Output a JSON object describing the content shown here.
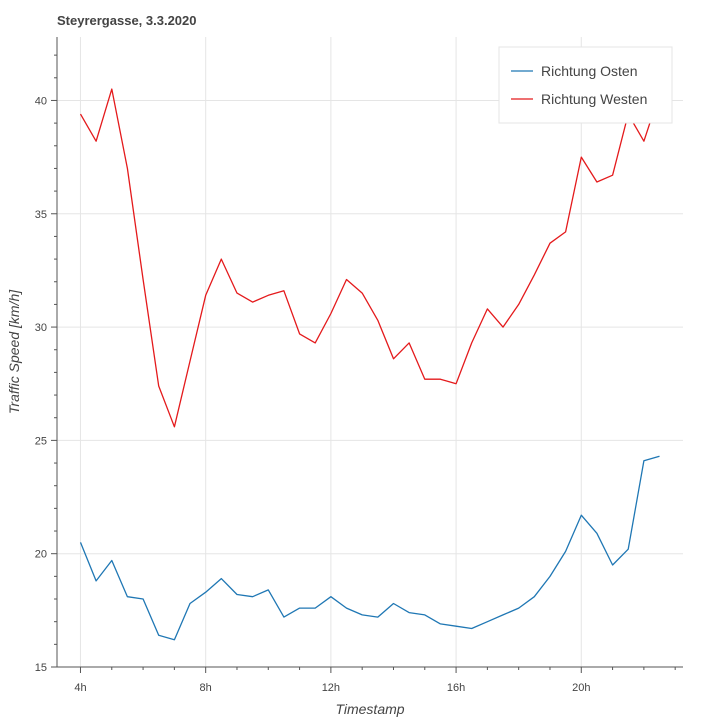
{
  "chart_data": {
    "type": "line",
    "title": "Steyrergasse, 3.3.2020",
    "xlabel": "Timestamp",
    "ylabel": "Traffic Speed [km/h]",
    "x_unit": "hour of day",
    "xlim": [
      3.25,
      23.25
    ],
    "ylim": [
      15,
      42.8
    ],
    "x_ticks": [
      4,
      8,
      12,
      16,
      20
    ],
    "x_tick_labels": [
      "4h",
      "8h",
      "12h",
      "16h",
      "20h"
    ],
    "y_ticks": [
      15,
      20,
      25,
      30,
      35,
      40
    ],
    "y_tick_labels": [
      "15",
      "20",
      "25",
      "30",
      "35",
      "40"
    ],
    "grid": true,
    "legend_position": "top-right",
    "x": [
      4,
      4.5,
      5,
      5.5,
      6,
      6.5,
      7,
      7.5,
      8,
      8.5,
      9,
      9.5,
      10,
      10.5,
      11,
      11.5,
      12,
      12.5,
      13,
      13.5,
      14,
      14.5,
      15,
      15.5,
      16,
      16.5,
      17,
      17.5,
      18,
      18.5,
      19,
      19.5,
      20,
      20.5,
      21,
      21.5,
      22,
      22.5
    ],
    "series": [
      {
        "name": "Richtung Osten",
        "color": "#1f77b4",
        "values": [
          20.5,
          18.8,
          19.7,
          18.1,
          18.0,
          16.4,
          16.2,
          17.8,
          18.3,
          18.9,
          18.2,
          18.1,
          18.4,
          17.2,
          17.6,
          17.6,
          18.1,
          17.6,
          17.3,
          17.2,
          17.8,
          17.4,
          17.3,
          16.9,
          16.8,
          16.7,
          17.0,
          17.3,
          17.6,
          18.1,
          19.0,
          20.1,
          21.7,
          20.9,
          19.5,
          20.2,
          24.1,
          24.3
        ]
      },
      {
        "name": "Richtung Westen",
        "color": "#e41a1c",
        "values": [
          39.4,
          38.2,
          40.5,
          37.0,
          32.1,
          27.4,
          25.6,
          28.5,
          31.4,
          33.0,
          31.5,
          31.1,
          31.4,
          31.6,
          29.7,
          29.3,
          30.6,
          32.1,
          31.5,
          30.3,
          28.6,
          29.3,
          27.7,
          27.7,
          27.5,
          29.3,
          30.8,
          30.0,
          31.0,
          32.3,
          33.7,
          34.2,
          37.5,
          36.4,
          36.7,
          39.4,
          38.2,
          40.3
        ]
      }
    ]
  }
}
